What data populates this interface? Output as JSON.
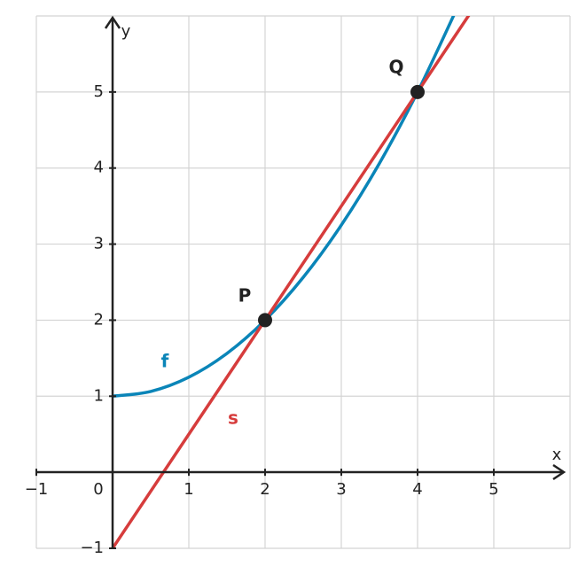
{
  "chart_data": {
    "type": "line",
    "x_label": "x",
    "y_label": "y",
    "xlim": [
      -1,
      6
    ],
    "ylim": [
      -1,
      6
    ],
    "xticks": [
      {
        "value": -1,
        "label": "−1"
      },
      0,
      1,
      2,
      3,
      4,
      5
    ],
    "yticks": [
      {
        "value": -1,
        "label": "−1"
      },
      1,
      2,
      3,
      4,
      5
    ],
    "grid": true,
    "series": [
      {
        "name": "f",
        "color": "#0a85b8",
        "x": [
          0,
          0.5,
          1,
          1.5,
          2,
          2.5,
          3,
          3.5,
          4,
          4.5
        ],
        "values": [
          1,
          1.0625,
          1.25,
          1.5625,
          2,
          2.5625,
          3.25,
          4.0625,
          5,
          6.0625
        ]
      },
      {
        "name": "s",
        "color": "#d63c3c",
        "x": [
          0,
          4.7
        ],
        "values": [
          -1,
          6.05
        ]
      }
    ],
    "points": [
      {
        "name": "P",
        "x": 2,
        "y": 2
      },
      {
        "name": "Q",
        "x": 4,
        "y": 5
      }
    ]
  }
}
